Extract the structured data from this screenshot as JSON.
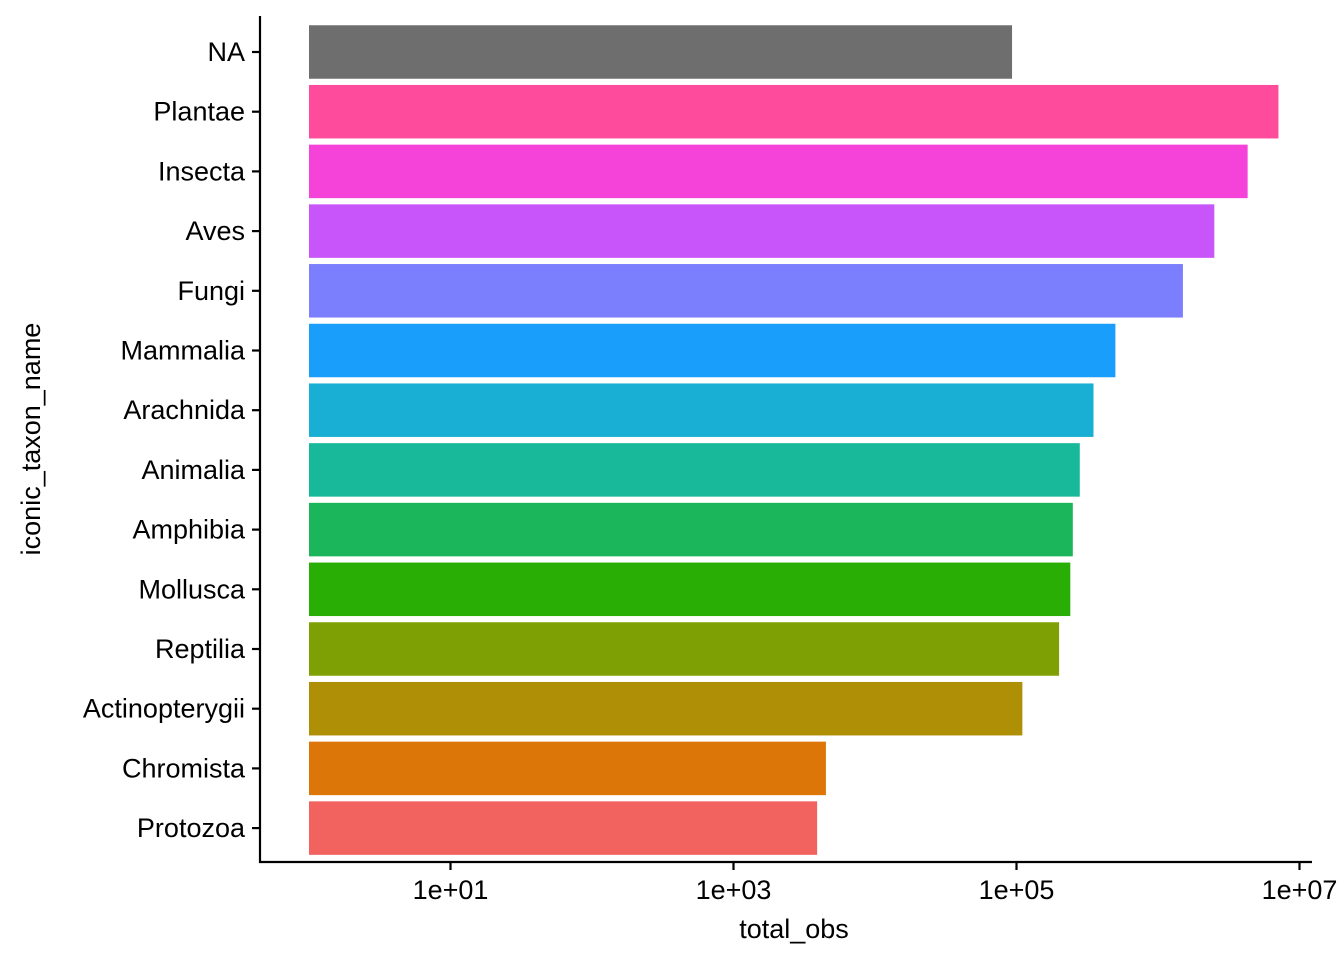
{
  "chart_data": {
    "type": "bar",
    "orientation": "horizontal",
    "xlabel": "total_obs",
    "ylabel": "iconic_taxon_name",
    "x_scale": "log10",
    "xlim": [
      1,
      10000000
    ],
    "x_ticks": [
      10,
      1000,
      100000,
      10000000
    ],
    "x_tick_labels": [
      "1e+01",
      "1e+03",
      "1e+05",
      "1e+07"
    ],
    "grid": false,
    "legend": "none",
    "categories": [
      "NA",
      "Plantae",
      "Insecta",
      "Aves",
      "Fungi",
      "Mammalia",
      "Arachnida",
      "Animalia",
      "Amphibia",
      "Mollusca",
      "Reptilia",
      "Actinopterygii",
      "Chromista",
      "Protozoa"
    ],
    "values": [
      93000,
      7100000,
      4300000,
      2500000,
      1500000,
      500000,
      350000,
      280000,
      250000,
      240000,
      200000,
      110000,
      4500,
      3900
    ],
    "colors": [
      "#6e6e6e",
      "#ff4b9b",
      "#f542d8",
      "#c855fa",
      "#7b7ffd",
      "#1a9efb",
      "#19aed3",
      "#17b99a",
      "#1bb55c",
      "#28ae04",
      "#7fa004",
      "#af8f06",
      "#dc7608",
      "#f2625f"
    ]
  }
}
